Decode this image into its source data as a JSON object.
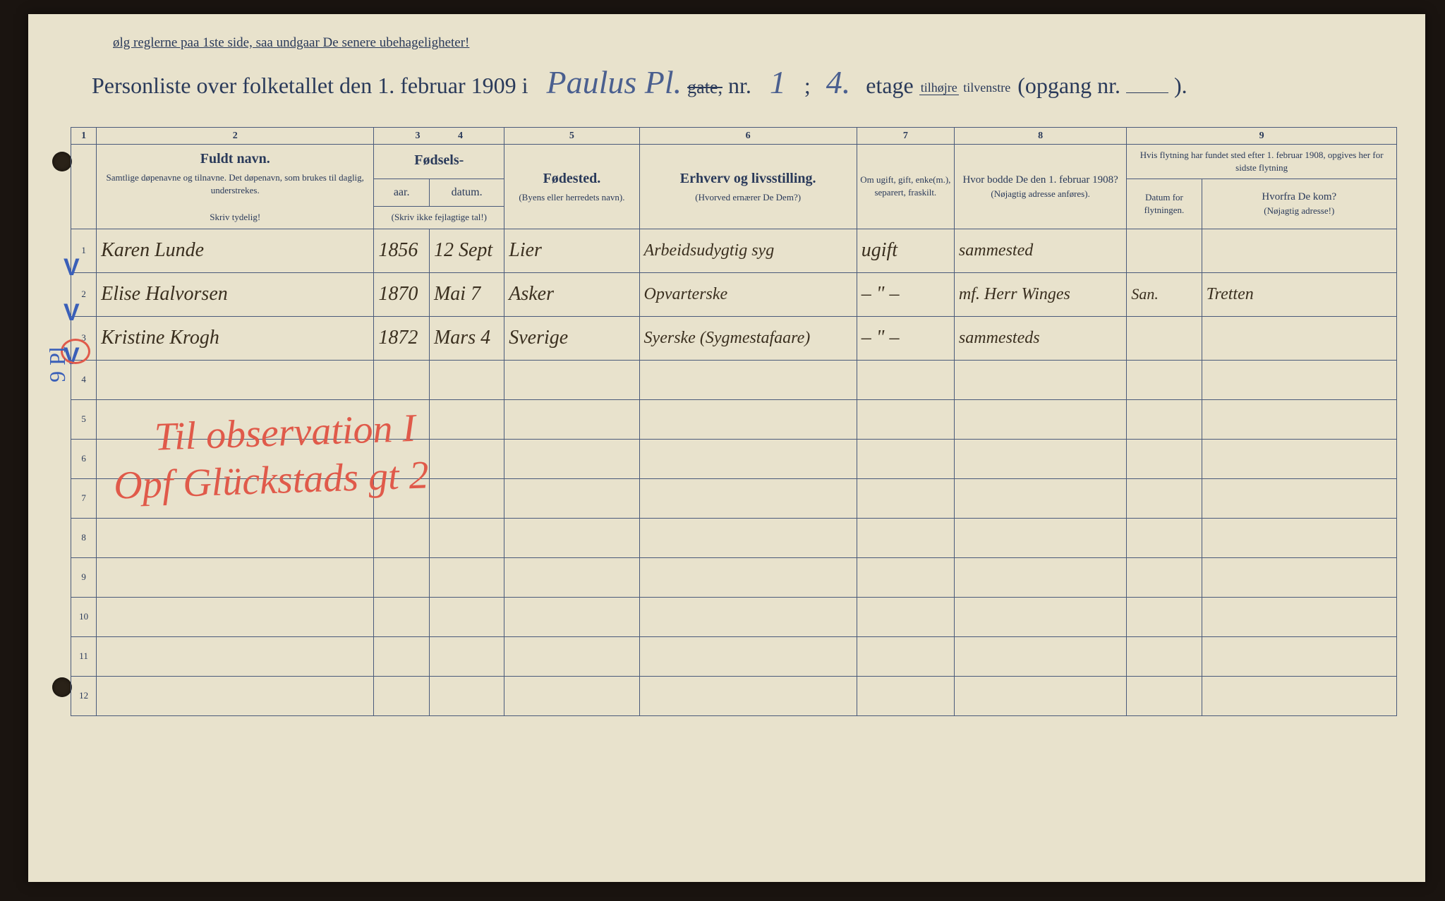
{
  "document": {
    "reminder_text": "ølg reglerne paa 1ste side, saa undgaar De senere ubehageligheter!",
    "title_prefix": "Personliste over folketallet den 1. februar 1909 i",
    "street_hw": "Paulus Pl.",
    "gate_label": "gate,",
    "nr_label": "nr.",
    "nr_value": "1",
    "separator": ";",
    "floor_value": "4.",
    "etage_label": "etage",
    "fraction_top": "tilhøjre",
    "fraction_bot": "tilvenstre",
    "opgang_label": "(opgang nr.",
    "closing": ").",
    "paper_bg": "#e8e2cc",
    "print_color": "#2a3a5a",
    "ink_color": "#3a2f1f",
    "blue_pencil": "#3a5fb8",
    "red_pencil": "#e05a4a"
  },
  "column_numbers": [
    "1",
    "2",
    "3",
    "4",
    "5",
    "6",
    "7",
    "8",
    "9"
  ],
  "headers": {
    "col1": " ",
    "col2_title": "Fuldt navn.",
    "col2_sub": "Samtlige døpenavne og tilnavne. Det døpenavn, som brukes til daglig, understrekes.",
    "col2_note": "Skriv tydelig!",
    "col34_group": "Fødsels-",
    "col3": "aar.",
    "col4": "datum.",
    "col34_note": "(Skriv ikke fejlagtige tal!)",
    "col5_title": "Fødested.",
    "col5_sub": "(Byens eller herredets navn).",
    "col6_title": "Erhverv og livsstilling.",
    "col6_sub": "(Hvorved ernærer De Dem?)",
    "col7": "Om ugift, gift, enke(m.), separert, fraskilt.",
    "col8_title": "Hvor bodde De den 1. februar 1908?",
    "col8_sub": "(Nøjagtig adresse anføres).",
    "col9_group": "Hvis flytning har fundet sted efter 1. februar 1908, opgives her for sidste flytning",
    "col9a": "Datum for flytningen.",
    "col9b_title": "Hvorfra De kom?",
    "col9b_sub": "(Nøjagtig adresse!)"
  },
  "rows": [
    {
      "num": "1",
      "mark": "V",
      "name": "Karen Lunde",
      "year": "1856",
      "date": "12 Sept",
      "place": "Lier",
      "occupation": "Arbeidsudygtig syg",
      "marital": "ugift",
      "addr1908": "sammested",
      "move_date": "",
      "move_from": ""
    },
    {
      "num": "2",
      "mark": "V",
      "name": "Elise Halvorsen",
      "year": "1870",
      "date": "Mai 7",
      "place": "Asker",
      "occupation": "Opvarterske",
      "marital": "– \" –",
      "addr1908": "mf. Herr Winges",
      "move_date": "San.",
      "move_from": "Tretten"
    },
    {
      "num": "3",
      "mark": "V",
      "name": "Kristine Krogh",
      "year": "1872",
      "date": "Mars 4",
      "place": "Sverige",
      "occupation": "Syerske (Sygmestafaare)",
      "marital": "– \" –",
      "addr1908": "sammesteds",
      "move_date": "",
      "move_from": ""
    }
  ],
  "empty_row_nums": [
    "4",
    "5",
    "6",
    "7",
    "8",
    "9",
    "10",
    "11",
    "12"
  ],
  "red_annotation": {
    "line1": "Til observation I",
    "line2": "Opf Glückstads gt 2"
  },
  "side_note": "9 Pl",
  "col_widths": {
    "c1": "34px",
    "c2": "370px",
    "c3": "74px",
    "c4": "100px",
    "c5": "180px",
    "c6": "290px",
    "c7": "130px",
    "c8": "230px",
    "c9a": "100px",
    "c9b": "260px"
  }
}
